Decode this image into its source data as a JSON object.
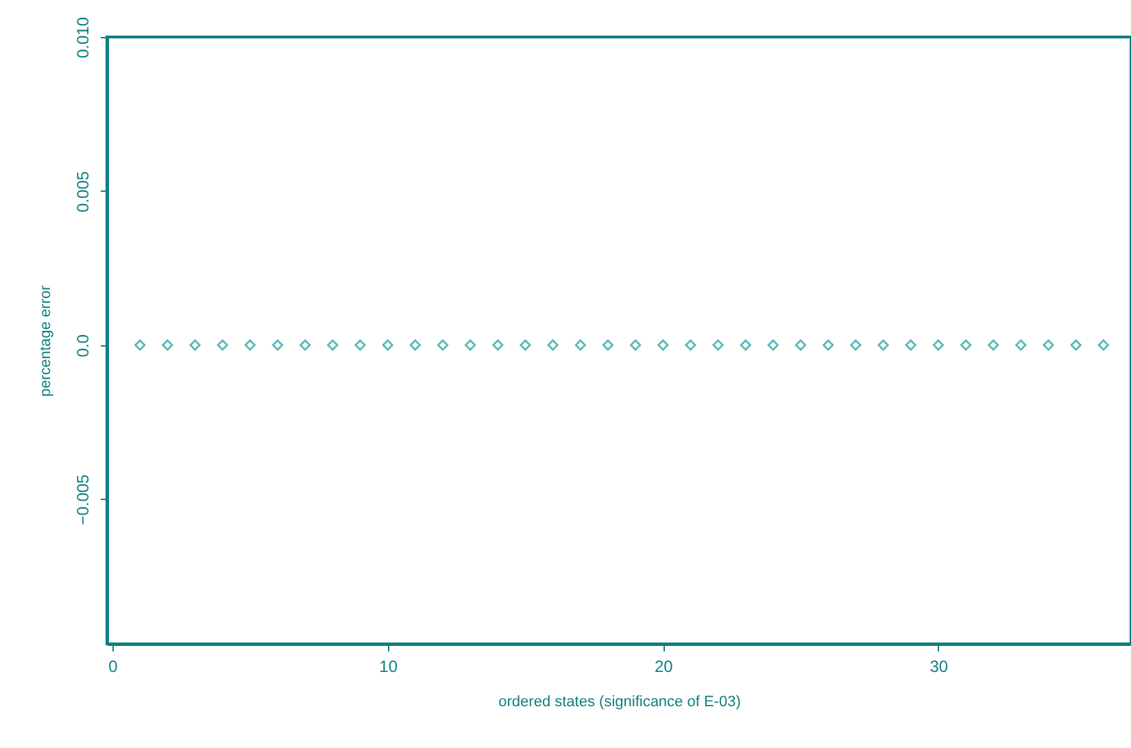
{
  "chart_data": {
    "type": "scatter",
    "xlabel": "ordered states (significance of E-03)",
    "ylabel": "percentage error",
    "x": [
      1,
      2,
      3,
      4,
      5,
      6,
      7,
      8,
      9,
      10,
      11,
      12,
      13,
      14,
      15,
      16,
      17,
      18,
      19,
      20,
      21,
      22,
      23,
      24,
      25,
      26,
      27,
      28,
      29,
      30,
      31,
      32,
      33,
      34,
      35,
      36
    ],
    "values": [
      0,
      0,
      0,
      0,
      0,
      0,
      0,
      0,
      0,
      0,
      0,
      0,
      0,
      0,
      0,
      0,
      0,
      0,
      0,
      0,
      0,
      0,
      0,
      0,
      0,
      0,
      0,
      0,
      0,
      0,
      0,
      0,
      0,
      0,
      0,
      0
    ],
    "color": "#1a9a9a",
    "marker": "diamond",
    "xlim": [
      -0.2,
      37
    ],
    "xticks": [
      0,
      10,
      20,
      30
    ],
    "ylim": [
      -0.0097,
      0.01
    ],
    "yticks": [
      {
        "value": 0.01,
        "label": "0.010"
      },
      0.005,
      {
        "value": 0,
        "label": "0.0"
      },
      -0.005
    ],
    "grid": false
  }
}
